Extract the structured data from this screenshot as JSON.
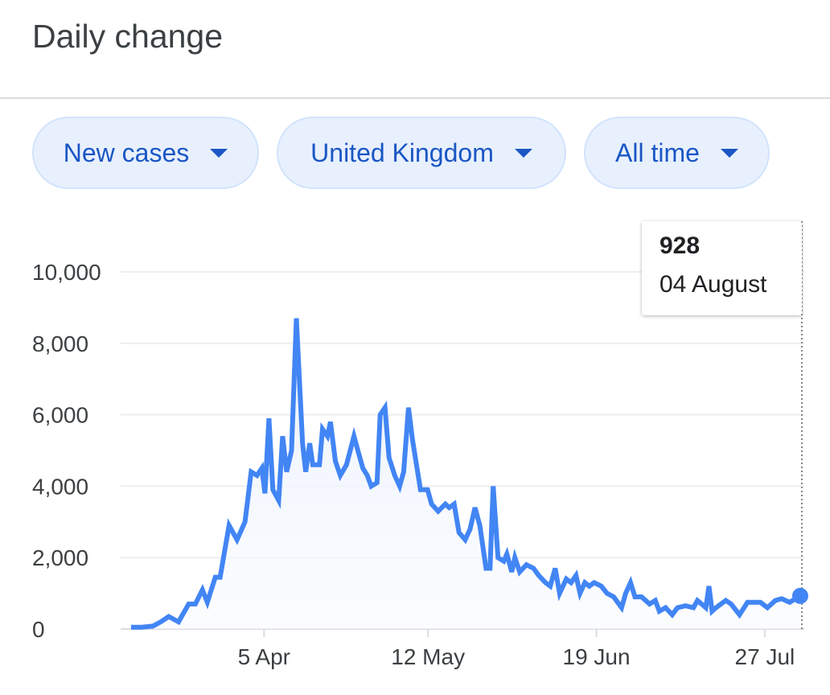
{
  "header": {
    "title": "Daily change"
  },
  "filters": [
    {
      "label": "New cases"
    },
    {
      "label": "United Kingdom"
    },
    {
      "label": "All time"
    }
  ],
  "tooltip": {
    "value": "928",
    "date": "04 August"
  },
  "colors": {
    "line": "#4285f4",
    "chip_bg": "#e8f0fe",
    "chip_text": "#1a56c4",
    "grid": "#eeeeee"
  },
  "chart_data": {
    "type": "area",
    "title": "Daily change",
    "xlabel": "",
    "ylabel": "New cases",
    "x_unit": "days since 6 Mar",
    "xlim": [
      0,
      151
    ],
    "ylim": [
      0,
      10000
    ],
    "grid": true,
    "y_ticks": [
      {
        "value": 0,
        "label": "0"
      },
      {
        "value": 2000,
        "label": "2,000"
      },
      {
        "value": 4000,
        "label": "4,000"
      },
      {
        "value": 6000,
        "label": "6,000"
      },
      {
        "value": 8000,
        "label": "8,000"
      },
      {
        "value": 10000,
        "label": "10,000"
      }
    ],
    "x_ticks": [
      {
        "value": 30,
        "label": "5 Apr"
      },
      {
        "value": 67,
        "label": "12 May"
      },
      {
        "value": 105,
        "label": "19 Jun"
      },
      {
        "value": 143,
        "label": "27 Jul"
      }
    ],
    "series": [
      {
        "name": "New cases",
        "points": [
          [
            0,
            50
          ],
          [
            2.2,
            50
          ],
          [
            4.9,
            80
          ],
          [
            6.7,
            200
          ],
          [
            8.5,
            350
          ],
          [
            10.7,
            200
          ],
          [
            13,
            700
          ],
          [
            14.5,
            700
          ],
          [
            16.1,
            1100
          ],
          [
            17.2,
            750
          ],
          [
            19,
            1450
          ],
          [
            20.1,
            1450
          ],
          [
            22.1,
            2900
          ],
          [
            23.9,
            2500
          ],
          [
            25.7,
            3000
          ],
          [
            27.1,
            4400
          ],
          [
            28.4,
            4300
          ],
          [
            29.5,
            4500
          ],
          [
            30.2,
            3800
          ],
          [
            31.1,
            5900
          ],
          [
            32,
            3900
          ],
          [
            33.3,
            3600
          ],
          [
            34.2,
            5400
          ],
          [
            35.1,
            4400
          ],
          [
            36.2,
            5000
          ],
          [
            37.3,
            8700
          ],
          [
            38.7,
            5200
          ],
          [
            39.4,
            4400
          ],
          [
            40.3,
            5200
          ],
          [
            41,
            4600
          ],
          [
            42.5,
            4600
          ],
          [
            43.2,
            5600
          ],
          [
            44.3,
            5400
          ],
          [
            45,
            5800
          ],
          [
            46.1,
            4700
          ],
          [
            47.2,
            4300
          ],
          [
            48.6,
            4600
          ],
          [
            50.3,
            5400
          ],
          [
            51.4,
            4900
          ],
          [
            52.3,
            4500
          ],
          [
            53.3,
            4300
          ],
          [
            54.2,
            4000
          ],
          [
            55.5,
            4100
          ],
          [
            56.2,
            6000
          ],
          [
            57.3,
            6200
          ],
          [
            58.2,
            4800
          ],
          [
            59.5,
            4300
          ],
          [
            60.6,
            4000
          ],
          [
            61.5,
            4400
          ],
          [
            62.6,
            6200
          ],
          [
            63.5,
            5300
          ],
          [
            65.3,
            3900
          ],
          [
            66.9,
            3900
          ],
          [
            67.8,
            3500
          ],
          [
            69.3,
            3300
          ],
          [
            70.9,
            3500
          ],
          [
            71.8,
            3400
          ],
          [
            72.9,
            3500
          ],
          [
            74,
            2700
          ],
          [
            75.4,
            2500
          ],
          [
            76.5,
            2800
          ],
          [
            77.6,
            3400
          ],
          [
            78.7,
            2900
          ],
          [
            80.1,
            1700
          ],
          [
            81,
            1700
          ],
          [
            81.7,
            4000
          ],
          [
            82.8,
            2000
          ],
          [
            84.1,
            1900
          ],
          [
            84.8,
            2100
          ],
          [
            85.9,
            1600
          ],
          [
            86.6,
            2000
          ],
          [
            87.7,
            1600
          ],
          [
            89.2,
            1800
          ],
          [
            90.8,
            1700
          ],
          [
            92,
            1500
          ],
          [
            93.5,
            1300
          ],
          [
            94.6,
            1200
          ],
          [
            95.7,
            1700
          ],
          [
            96.7,
            1000
          ],
          [
            98.2,
            1400
          ],
          [
            99.3,
            1300
          ],
          [
            100.4,
            1500
          ],
          [
            101.3,
            1000
          ],
          [
            102.4,
            1300
          ],
          [
            103.4,
            1200
          ],
          [
            104.5,
            1300
          ],
          [
            106.1,
            1200
          ],
          [
            107.4,
            1000
          ],
          [
            108.9,
            900
          ],
          [
            110.7,
            600
          ],
          [
            111.6,
            1000
          ],
          [
            112.7,
            1300
          ],
          [
            113.7,
            900
          ],
          [
            115.2,
            900
          ],
          [
            117,
            700
          ],
          [
            118.3,
            800
          ],
          [
            119.2,
            500
          ],
          [
            120.6,
            600
          ],
          [
            122.1,
            400
          ],
          [
            123.3,
            600
          ],
          [
            125.1,
            650
          ],
          [
            126.9,
            600
          ],
          [
            127.8,
            800
          ],
          [
            129.7,
            600
          ],
          [
            130.4,
            1200
          ],
          [
            131.1,
            500
          ],
          [
            132,
            600
          ],
          [
            134.2,
            800
          ],
          [
            135.4,
            700
          ],
          [
            137.3,
            400
          ],
          [
            139.1,
            750
          ],
          [
            142,
            750
          ],
          [
            143.6,
            600
          ],
          [
            145.4,
            800
          ],
          [
            146.8,
            850
          ],
          [
            148.6,
            750
          ],
          [
            151,
            928
          ]
        ]
      }
    ],
    "highlight": {
      "x": 151,
      "value": 928,
      "label": "04 August"
    }
  }
}
